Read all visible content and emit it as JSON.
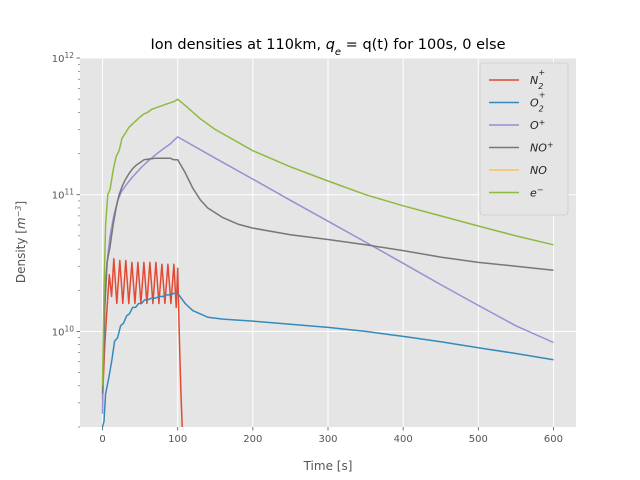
{
  "chart_data": {
    "type": "line",
    "title": "Ion densities at 110km, q_e = q(t) for 100s, 0 else",
    "title_parts": {
      "prefix": "Ion densities at 110km, ",
      "math_base": "q",
      "math_sub": "e",
      "math_rest": " = q(t)",
      "suffix": " for 100s, 0 else"
    },
    "xlabel": "Time [s]",
    "ylabel": "Density [m⁻³]",
    "ylabel_parts": {
      "base": "Density [",
      "unit": "m",
      "exp": "−3",
      "close": "]"
    },
    "xlim": [
      -30,
      630
    ],
    "ylim": [
      2000000000.0,
      1000000000000.0
    ],
    "yscale": "log",
    "grid": true,
    "x_ticks": [
      0,
      100,
      200,
      300,
      400,
      500,
      600
    ],
    "y_ticks": [
      {
        "value": 10000000000.0,
        "base": "10",
        "exp": "10"
      },
      {
        "value": 100000000000.0,
        "base": "10",
        "exp": "11"
      },
      {
        "value": 1000000000000.0,
        "base": "10",
        "exp": "12"
      }
    ],
    "legend_position": "top-right",
    "series": [
      {
        "name": "N2+",
        "label_base": "N",
        "label_sub": "2",
        "label_sup": "+",
        "color": "#E24A33",
        "points": [
          [
            0,
            3200000000.0
          ],
          [
            3,
            8000000000.0
          ],
          [
            6,
            15000000000.0
          ],
          [
            9,
            26000000000.0
          ],
          [
            12,
            18000000000.0
          ],
          [
            15,
            34000000000.0
          ],
          [
            19,
            16000000000.0
          ],
          [
            23,
            33000000000.0
          ],
          [
            27,
            16000000000.0
          ],
          [
            31,
            33000000000.0
          ],
          [
            35,
            16000000000.0
          ],
          [
            39,
            32000000000.0
          ],
          [
            43,
            16000000000.0
          ],
          [
            47,
            32000000000.0
          ],
          [
            51,
            16000000000.0
          ],
          [
            55,
            32000000000.0
          ],
          [
            59,
            16000000000.0
          ],
          [
            63,
            32000000000.0
          ],
          [
            67,
            16000000000.0
          ],
          [
            71,
            32000000000.0
          ],
          [
            75,
            16000000000.0
          ],
          [
            79,
            31000000000.0
          ],
          [
            83,
            16000000000.0
          ],
          [
            87,
            31000000000.0
          ],
          [
            91,
            16000000000.0
          ],
          [
            95,
            31000000000.0
          ],
          [
            98,
            15000000000.0
          ],
          [
            100,
            29000000000.0
          ],
          [
            102,
            10000000000.0
          ],
          [
            104,
            4000000000.0
          ],
          [
            106,
            2000000000.0
          ]
        ]
      },
      {
        "name": "O2+",
        "label_base": "O",
        "label_sub": "2",
        "label_sup": "+",
        "color": "#348ABD",
        "points": [
          [
            0,
            2000000000.0
          ],
          [
            2,
            2200000000.0
          ],
          [
            4,
            3500000000.0
          ],
          [
            8,
            4500000000.0
          ],
          [
            12,
            6000000000.0
          ],
          [
            16,
            8500000000.0
          ],
          [
            20,
            9000000000.0
          ],
          [
            24,
            11000000000.0
          ],
          [
            28,
            11500000000.0
          ],
          [
            32,
            13000000000.0
          ],
          [
            36,
            13500000000.0
          ],
          [
            40,
            15000000000.0
          ],
          [
            44,
            15000000000.0
          ],
          [
            48,
            16000000000.0
          ],
          [
            52,
            16000000000.0
          ],
          [
            56,
            17000000000.0
          ],
          [
            60,
            17000000000.0
          ],
          [
            65,
            17500000000.0
          ],
          [
            70,
            17500000000.0
          ],
          [
            75,
            18000000000.0
          ],
          [
            80,
            18000000000.0
          ],
          [
            85,
            18500000000.0
          ],
          [
            90,
            18500000000.0
          ],
          [
            95,
            19000000000.0
          ],
          [
            100,
            19000000000.0
          ],
          [
            110,
            16000000000.0
          ],
          [
            120,
            14200000000.0
          ],
          [
            140,
            12700000000.0
          ],
          [
            160,
            12300000000.0
          ],
          [
            200,
            11900000000.0
          ],
          [
            250,
            11300000000.0
          ],
          [
            300,
            10700000000.0
          ],
          [
            350,
            10000000000.0
          ],
          [
            400,
            9200000000.0
          ],
          [
            450,
            8400000000.0
          ],
          [
            500,
            7600000000.0
          ],
          [
            550,
            6900000000.0
          ],
          [
            600,
            6200000000.0
          ]
        ]
      },
      {
        "name": "O+",
        "label_base": "O",
        "label_sub": "",
        "label_sup": "+",
        "color": "#988ED5",
        "points": [
          [
            0,
            2500000000.0
          ],
          [
            2,
            10000000000.0
          ],
          [
            4,
            24000000000.0
          ],
          [
            7,
            36000000000.0
          ],
          [
            10,
            50000000000.0
          ],
          [
            15,
            70000000000.0
          ],
          [
            20,
            90000000000.0
          ],
          [
            25,
            105000000000.0
          ],
          [
            30,
            115000000000.0
          ],
          [
            35,
            125000000000.0
          ],
          [
            40,
            135000000000.0
          ],
          [
            45,
            145000000000.0
          ],
          [
            50,
            155000000000.0
          ],
          [
            55,
            165000000000.0
          ],
          [
            60,
            175000000000.0
          ],
          [
            65,
            185000000000.0
          ],
          [
            70,
            195000000000.0
          ],
          [
            75,
            205000000000.0
          ],
          [
            80,
            215000000000.0
          ],
          [
            85,
            225000000000.0
          ],
          [
            90,
            235000000000.0
          ],
          [
            95,
            250000000000.0
          ],
          [
            100,
            265000000000.0
          ],
          [
            150,
            185000000000.0
          ],
          [
            200,
            130000000000.0
          ],
          [
            250,
            91000000000.0
          ],
          [
            300,
            64000000000.0
          ],
          [
            350,
            45000000000.0
          ],
          [
            400,
            31500000000.0
          ],
          [
            450,
            22000000000.0
          ],
          [
            500,
            15500000000.0
          ],
          [
            550,
            11000000000.0
          ],
          [
            600,
            8300000000.0
          ]
        ]
      },
      {
        "name": "NO+",
        "label_base": "NO",
        "label_sub": "",
        "label_sup": "+",
        "color": "#777777",
        "points": [
          [
            0,
            3500000000.0
          ],
          [
            3,
            15000000000.0
          ],
          [
            6,
            32000000000.0
          ],
          [
            10,
            42000000000.0
          ],
          [
            14,
            60000000000.0
          ],
          [
            18,
            80000000000.0
          ],
          [
            22,
            100000000000.0
          ],
          [
            26,
            115000000000.0
          ],
          [
            30,
            128000000000.0
          ],
          [
            35,
            142000000000.0
          ],
          [
            40,
            155000000000.0
          ],
          [
            45,
            165000000000.0
          ],
          [
            50,
            172000000000.0
          ],
          [
            55,
            180000000000.0
          ],
          [
            60,
            182000000000.0
          ],
          [
            70,
            185000000000.0
          ],
          [
            80,
            185000000000.0
          ],
          [
            90,
            185000000000.0
          ],
          [
            95,
            180000000000.0
          ],
          [
            100,
            180000000000.0
          ],
          [
            110,
            145000000000.0
          ],
          [
            120,
            112000000000.0
          ],
          [
            130,
            92000000000.0
          ],
          [
            140,
            80000000000.0
          ],
          [
            160,
            68000000000.0
          ],
          [
            180,
            61000000000.0
          ],
          [
            200,
            57000000000.0
          ],
          [
            250,
            51000000000.0
          ],
          [
            300,
            47000000000.0
          ],
          [
            350,
            43000000000.0
          ],
          [
            400,
            39000000000.0
          ],
          [
            450,
            35000000000.0
          ],
          [
            500,
            32000000000.0
          ],
          [
            550,
            30000000000.0
          ],
          [
            600,
            28000000000.0
          ]
        ]
      },
      {
        "name": "NO",
        "label_base": "NO",
        "label_sub": "",
        "label_sup": "",
        "color": "#FBC15E",
        "points": []
      },
      {
        "name": "e-",
        "label_base": "e",
        "label_sub": "",
        "label_sup": "−",
        "color": "#8EBA42",
        "points": [
          [
            0,
            4000000000.0
          ],
          [
            2,
            20000000000.0
          ],
          [
            4,
            60000000000.0
          ],
          [
            7,
            100000000000.0
          ],
          [
            10,
            110000000000.0
          ],
          [
            14,
            150000000000.0
          ],
          [
            18,
            190000000000.0
          ],
          [
            22,
            210000000000.0
          ],
          [
            26,
            260000000000.0
          ],
          [
            30,
            280000000000.0
          ],
          [
            35,
            310000000000.0
          ],
          [
            40,
            330000000000.0
          ],
          [
            45,
            350000000000.0
          ],
          [
            50,
            370000000000.0
          ],
          [
            55,
            390000000000.0
          ],
          [
            60,
            400000000000.0
          ],
          [
            65,
            420000000000.0
          ],
          [
            70,
            430000000000.0
          ],
          [
            75,
            440000000000.0
          ],
          [
            80,
            450000000000.0
          ],
          [
            85,
            460000000000.0
          ],
          [
            90,
            470000000000.0
          ],
          [
            95,
            480000000000.0
          ],
          [
            100,
            500000000000.0
          ],
          [
            110,
            450000000000.0
          ],
          [
            130,
            360000000000.0
          ],
          [
            150,
            300000000000.0
          ],
          [
            200,
            210000000000.0
          ],
          [
            250,
            160000000000.0
          ],
          [
            300,
            126000000000.0
          ],
          [
            350,
            100000000000.0
          ],
          [
            400,
            83000000000.0
          ],
          [
            450,
            70000000000.0
          ],
          [
            500,
            59000000000.0
          ],
          [
            550,
            50000000000.0
          ],
          [
            600,
            43000000000.0
          ]
        ]
      }
    ]
  }
}
